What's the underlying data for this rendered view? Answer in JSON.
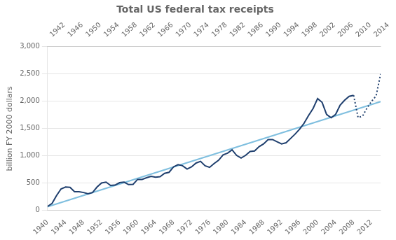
{
  "chart_data": {
    "type": "line",
    "title": "Total US federal tax receipts",
    "ylabel": "billion FY 2000 dollars",
    "xlim": [
      1940,
      2014
    ],
    "xticks": [
      1940,
      1944,
      1948,
      1952,
      1956,
      1960,
      1964,
      1968,
      1972,
      1976,
      1980,
      1984,
      1988,
      1992,
      1996,
      2000,
      2004,
      2008,
      2012
    ],
    "x2lim": [
      1940,
      2014
    ],
    "x2ticks": [
      1942,
      1946,
      1950,
      1954,
      1958,
      1962,
      1966,
      1970,
      1974,
      1978,
      1982,
      1986,
      1990,
      1994,
      1998,
      2002,
      2006,
      2010,
      2014
    ],
    "ylim": [
      0,
      3000
    ],
    "yticks": [
      0,
      500,
      {
        "value": 1000,
        "label": "1,000"
      },
      {
        "value": 1500,
        "label": "1,500"
      },
      {
        "value": 2000,
        "label": "2,000"
      },
      {
        "value": 2500,
        "label": "2,500"
      },
      {
        "value": 3000,
        "label": "3,000"
      }
    ],
    "grid": "y",
    "series": [
      {
        "color": "#1f3f6e",
        "line_style": "solid",
        "x": [
          1940,
          1941,
          1942,
          1943,
          1944,
          1945,
          1946,
          1947,
          1948,
          1949,
          1950,
          1951,
          1952,
          1953,
          1954,
          1955,
          1956,
          1957,
          1958,
          1959,
          1960,
          1961,
          1962,
          1963,
          1964,
          1965,
          1966,
          1967,
          1968,
          1969,
          1970,
          1971,
          1972,
          1973,
          1974,
          1975,
          1976,
          1977,
          1978,
          1979,
          1980,
          1981,
          1982,
          1983,
          1984,
          1985,
          1986,
          1987,
          1988,
          1989,
          1990,
          1991,
          1992,
          1993,
          1994,
          1995,
          1996,
          1997,
          1998,
          1999,
          2000,
          2001,
          2002,
          2003,
          2004,
          2005,
          2006,
          2007,
          2008
        ],
        "values": [
          75,
          130,
          275,
          395,
          430,
          425,
          345,
          345,
          330,
          305,
          330,
          430,
          505,
          520,
          460,
          465,
          510,
          520,
          475,
          480,
          570,
          570,
          600,
          625,
          610,
          620,
          680,
          700,
          800,
          840,
          820,
          760,
          800,
          870,
          900,
          820,
          790,
          860,
          920,
          1020,
          1050,
          1110,
          1010,
          960,
          1010,
          1080,
          1090,
          1170,
          1220,
          1300,
          1300,
          1260,
          1220,
          1240,
          1320,
          1400,
          1490,
          1600,
          1740,
          1870,
          2050,
          1980,
          1760,
          1700,
          1760,
          1930,
          2020,
          2090,
          2110
        ]
      },
      {
        "color": "#1f3f6e",
        "line_style": "dotted",
        "x": [
          2008,
          2009,
          2010,
          2011,
          2012,
          2013,
          2014
        ],
        "values": [
          2110,
          1700,
          1730,
          1880,
          2000,
          2100,
          2500
        ]
      },
      {
        "color": "#7fbfdf",
        "line_style": "solid",
        "x": [
          1940,
          2014
        ],
        "values": [
          69.598,
          1993.735
        ]
      }
    ]
  }
}
